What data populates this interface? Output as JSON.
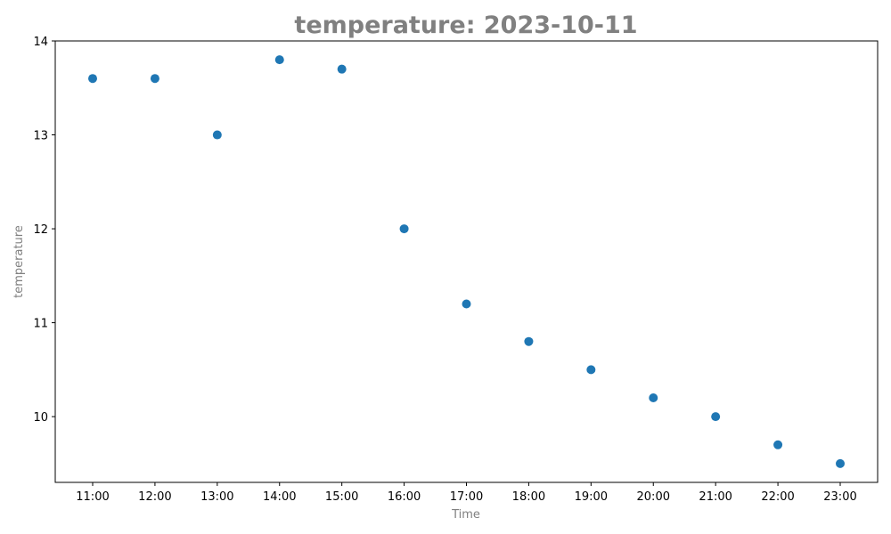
{
  "chart_data": {
    "type": "scatter",
    "title": "temperature: 2023-10-11",
    "xlabel": "Time",
    "ylabel": "temperature",
    "x": [
      "11:00",
      "12:00",
      "13:00",
      "14:00",
      "15:00",
      "16:00",
      "17:00",
      "18:00",
      "19:00",
      "20:00",
      "21:00",
      "22:00",
      "23:00"
    ],
    "y": [
      13.6,
      13.6,
      13.0,
      13.8,
      13.7,
      12.0,
      11.2,
      10.8,
      10.5,
      10.2,
      10.0,
      9.7,
      9.5
    ],
    "yticks": [
      10,
      11,
      12,
      13,
      14
    ],
    "ylim": [
      9.3,
      14.0
    ],
    "grid": false,
    "legend": "none",
    "marker_color": "#1f77b4"
  }
}
